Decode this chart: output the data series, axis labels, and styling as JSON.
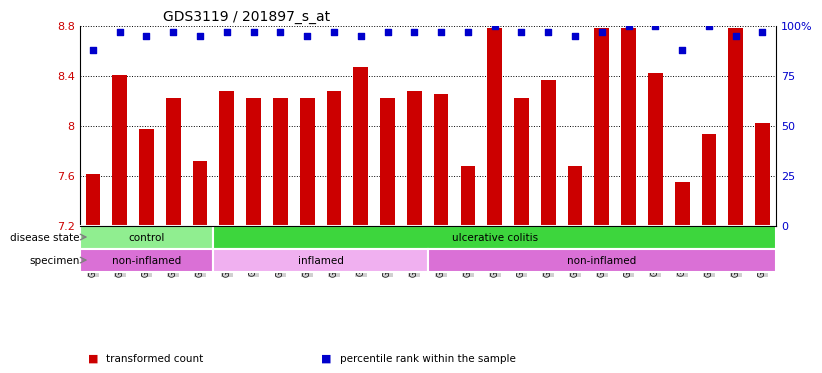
{
  "title": "GDS3119 / 201897_s_at",
  "samples": [
    "GSM240023",
    "GSM240024",
    "GSM240025",
    "GSM240026",
    "GSM240027",
    "GSM239617",
    "GSM239618",
    "GSM239714",
    "GSM239716",
    "GSM239717",
    "GSM239718",
    "GSM239719",
    "GSM239720",
    "GSM239723",
    "GSM239725",
    "GSM239726",
    "GSM239727",
    "GSM239729",
    "GSM239730",
    "GSM239731",
    "GSM239732",
    "GSM240022",
    "GSM240028",
    "GSM240029",
    "GSM240030",
    "GSM240031"
  ],
  "bar_values": [
    7.61,
    8.41,
    7.97,
    8.22,
    7.72,
    8.28,
    8.22,
    8.22,
    8.22,
    8.28,
    8.47,
    8.22,
    8.28,
    8.25,
    7.68,
    8.78,
    8.22,
    8.37,
    7.68,
    8.78,
    8.78,
    8.42,
    7.55,
    7.93,
    8.78,
    8.02
  ],
  "percentile_values": [
    88,
    97,
    95,
    97,
    95,
    97,
    97,
    97,
    95,
    97,
    95,
    97,
    97,
    97,
    97,
    100,
    97,
    97,
    95,
    97,
    100,
    100,
    88,
    100,
    95,
    97
  ],
  "ylim_left": [
    7.2,
    8.8
  ],
  "yticks_left": [
    7.2,
    7.6,
    8.0,
    8.4,
    8.8
  ],
  "ytick_labels_left": [
    "7.2",
    "7.6",
    "8",
    "8.4",
    "8.8"
  ],
  "ylim_right": [
    0,
    100
  ],
  "yticks_right": [
    0,
    25,
    50,
    75,
    100
  ],
  "ytick_labels_right": [
    "0",
    "25",
    "50",
    "75",
    "100%"
  ],
  "bar_color": "#cc0000",
  "dot_color": "#0000cc",
  "disease_state_groups": [
    {
      "label": "control",
      "start": 0,
      "end": 5,
      "color": "#90ee90"
    },
    {
      "label": "ulcerative colitis",
      "start": 5,
      "end": 26,
      "color": "#3dd63d"
    }
  ],
  "specimen_groups": [
    {
      "label": "non-inflamed",
      "start": 0,
      "end": 5,
      "color": "#da70d6"
    },
    {
      "label": "inflamed",
      "start": 5,
      "end": 13,
      "color": "#f0b0f0"
    },
    {
      "label": "non-inflamed",
      "start": 13,
      "end": 26,
      "color": "#da70d6"
    }
  ],
  "legend_items": [
    {
      "label": "transformed count",
      "color": "#cc0000",
      "marker": "s"
    },
    {
      "label": "percentile rank within the sample",
      "color": "#0000cc",
      "marker": "s"
    }
  ],
  "bar_width": 0.55,
  "dot_size": 18,
  "tick_bg_color": "#d0d0d0"
}
